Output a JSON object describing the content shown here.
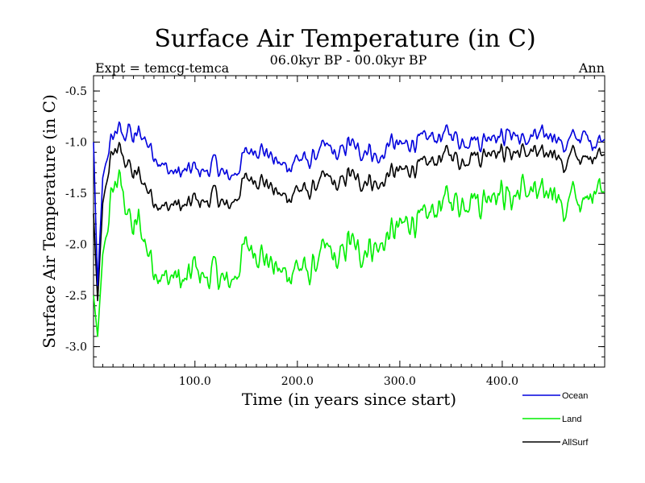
{
  "chart_data": {
    "type": "line",
    "title": "Surface Air Temperature (in C)",
    "subtitle": "06.0kyr BP - 00.0kyr BP",
    "expt_label": "Expt = temcg-temca",
    "season_label": "Ann",
    "xlabel": "Time (in years since start)",
    "ylabel": "Surface Air Temperature (in C)",
    "xlim": [
      1,
      500
    ],
    "ylim": [
      -3.2,
      -0.35
    ],
    "xticks": [
      100,
      200,
      300,
      400
    ],
    "xtick_labels": [
      "100.0",
      "200.0",
      "300.0",
      "400.0"
    ],
    "yticks": [
      -3.0,
      -2.5,
      -2.0,
      -1.5,
      -1.0,
      -0.5
    ],
    "ytick_labels": [
      "-3.0",
      "-2.5",
      "-2.0",
      "-1.5",
      "-1.0",
      "-0.5"
    ],
    "legend_position": "bottom-right",
    "series": [
      {
        "name": "Ocean",
        "color": "#0000dd",
        "x": [
          1,
          5,
          10,
          15,
          20,
          25,
          30,
          35,
          40,
          45,
          50,
          60,
          70,
          80,
          90,
          100,
          110,
          120,
          130,
          140,
          150,
          160,
          170,
          180,
          190,
          200,
          210,
          220,
          230,
          240,
          250,
          260,
          270,
          280,
          290,
          300,
          310,
          320,
          330,
          340,
          350,
          360,
          370,
          380,
          390,
          400,
          410,
          420,
          430,
          440,
          450,
          460,
          470,
          480,
          490,
          500
        ],
        "values": [
          -1.0,
          -2.4,
          -1.35,
          -1.1,
          -0.95,
          -0.85,
          -0.95,
          -0.85,
          -1.0,
          -0.9,
          -0.95,
          -1.1,
          -1.25,
          -1.3,
          -1.3,
          -1.25,
          -1.3,
          -1.2,
          -1.35,
          -1.3,
          -1.1,
          -1.05,
          -1.1,
          -1.2,
          -1.25,
          -1.15,
          -1.2,
          -1.1,
          -1.05,
          -1.15,
          -1.0,
          -1.1,
          -1.05,
          -1.2,
          -1.0,
          -1.05,
          -1.0,
          -1.0,
          -0.95,
          -0.95,
          -0.9,
          -1.0,
          -0.95,
          -1.0,
          -0.9,
          -0.95,
          -0.9,
          -1.0,
          -0.95,
          -0.95,
          -0.9,
          -1.05,
          -0.95,
          -0.95,
          -1.0,
          -0.95
        ]
      },
      {
        "name": "Land",
        "color": "#00ee00",
        "x": [
          1,
          5,
          10,
          15,
          20,
          25,
          30,
          35,
          40,
          45,
          50,
          60,
          70,
          80,
          90,
          100,
          110,
          120,
          130,
          140,
          150,
          160,
          170,
          180,
          190,
          200,
          210,
          220,
          230,
          240,
          250,
          260,
          270,
          280,
          290,
          300,
          310,
          320,
          330,
          340,
          350,
          360,
          370,
          380,
          390,
          400,
          410,
          420,
          430,
          440,
          450,
          460,
          470,
          480,
          490,
          500
        ],
        "values": [
          -2.5,
          -2.9,
          -2.1,
          -1.8,
          -1.45,
          -1.35,
          -1.5,
          -1.7,
          -1.9,
          -1.75,
          -1.95,
          -2.2,
          -2.35,
          -2.3,
          -2.4,
          -2.2,
          -2.35,
          -2.25,
          -2.4,
          -2.3,
          -2.0,
          -2.05,
          -2.15,
          -2.25,
          -2.3,
          -2.2,
          -2.3,
          -2.15,
          -2.05,
          -2.2,
          -1.95,
          -2.1,
          -2.0,
          -2.05,
          -1.9,
          -1.85,
          -1.75,
          -1.8,
          -1.7,
          -1.6,
          -1.55,
          -1.6,
          -1.5,
          -1.6,
          -1.45,
          -1.5,
          -1.55,
          -1.45,
          -1.5,
          -1.55,
          -1.4,
          -1.7,
          -1.5,
          -1.65,
          -1.4,
          -1.45
        ]
      },
      {
        "name": "AllSurf",
        "color": "#000000",
        "x": [
          1,
          5,
          10,
          15,
          20,
          25,
          30,
          35,
          40,
          45,
          50,
          60,
          70,
          80,
          90,
          100,
          110,
          120,
          130,
          140,
          150,
          160,
          170,
          180,
          190,
          200,
          210,
          220,
          230,
          240,
          250,
          260,
          270,
          280,
          290,
          300,
          310,
          320,
          330,
          340,
          350,
          360,
          370,
          380,
          390,
          400,
          410,
          420,
          430,
          440,
          450,
          460,
          470,
          480,
          490,
          500
        ],
        "values": [
          -1.7,
          -2.55,
          -1.6,
          -1.3,
          -1.1,
          -1.05,
          -1.15,
          -1.2,
          -1.35,
          -1.3,
          -1.4,
          -1.55,
          -1.65,
          -1.6,
          -1.65,
          -1.55,
          -1.6,
          -1.5,
          -1.65,
          -1.55,
          -1.35,
          -1.35,
          -1.4,
          -1.5,
          -1.55,
          -1.45,
          -1.5,
          -1.4,
          -1.35,
          -1.45,
          -1.3,
          -1.4,
          -1.35,
          -1.45,
          -1.3,
          -1.3,
          -1.25,
          -1.25,
          -1.2,
          -1.15,
          -1.1,
          -1.2,
          -1.1,
          -1.15,
          -1.05,
          -1.1,
          -1.1,
          -1.1,
          -1.1,
          -1.15,
          -1.05,
          -1.25,
          -1.1,
          -1.2,
          -1.1,
          -1.1
        ]
      }
    ]
  }
}
